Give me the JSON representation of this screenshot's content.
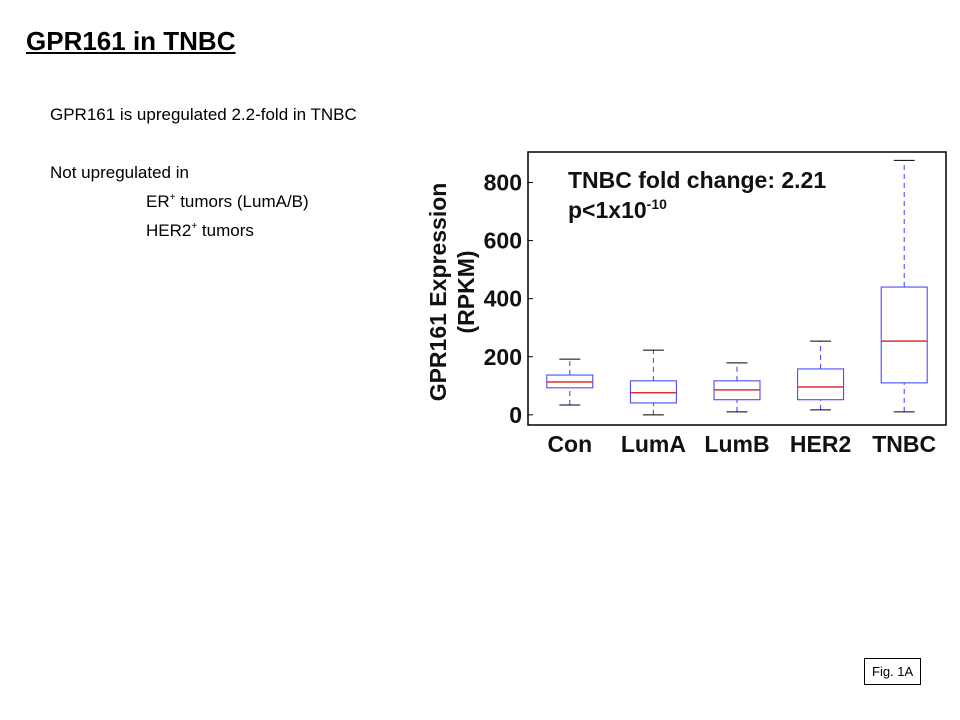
{
  "header": {
    "title": "GPR161 in TNBC"
  },
  "text": {
    "line1": "GPR161 is upregulated 2.2-fold in TNBC",
    "line2": "Not upregulated in",
    "line3": {
      "base": "ER",
      "sup": "+",
      "rest": " tumors (LumA/B)"
    },
    "line4": {
      "base": "HER2",
      "sup": "+",
      "rest": " tumors"
    }
  },
  "figure_label": "Fig. 1A",
  "chart_data": {
    "type": "box",
    "y_label": [
      "GPR161 Expression",
      "(RPKM)"
    ],
    "annotation": {
      "line1": "TNBC fold change: 2.21",
      "line2": "p<1x10",
      "line2_sup": "-10"
    },
    "categories": [
      "Con",
      "LumA",
      "LumB",
      "HER2",
      "TNBC"
    ],
    "whisker_low": [
      34,
      0,
      10,
      17,
      10
    ],
    "q1": [
      93,
      41,
      52,
      52,
      110
    ],
    "median": [
      113,
      76,
      86,
      96,
      254
    ],
    "q3": [
      137,
      117,
      117,
      158,
      440
    ],
    "whisker_high": [
      192,
      223,
      179,
      254,
      876
    ],
    "box_color": "#3a3aff",
    "median_color": "#e03030",
    "ylim": [
      -35,
      905
    ],
    "yticks": [
      0,
      200,
      400,
      600,
      800
    ],
    "grid": false
  }
}
